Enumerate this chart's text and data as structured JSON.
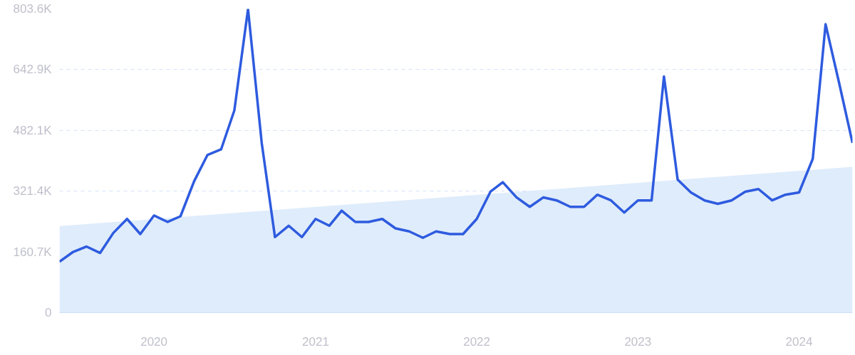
{
  "chart_data": {
    "type": "line",
    "x": [
      "2019-06",
      "2019-07",
      "2019-08",
      "2019-09",
      "2019-10",
      "2019-11",
      "2019-12",
      "2020-01",
      "2020-02",
      "2020-03",
      "2020-04",
      "2020-05",
      "2020-06",
      "2020-07",
      "2020-08",
      "2020-09",
      "2020-10",
      "2020-11",
      "2020-12",
      "2021-01",
      "2021-02",
      "2021-03",
      "2021-04",
      "2021-05",
      "2021-06",
      "2021-07",
      "2021-08",
      "2021-09",
      "2021-10",
      "2021-11",
      "2021-12",
      "2022-01",
      "2022-02",
      "2022-03",
      "2022-04",
      "2022-05",
      "2022-06",
      "2022-07",
      "2022-08",
      "2022-09",
      "2022-10",
      "2022-11",
      "2022-12",
      "2023-01",
      "2023-02",
      "2023-03",
      "2023-04",
      "2023-05",
      "2023-06",
      "2023-07",
      "2023-08",
      "2023-09",
      "2023-10",
      "2023-11",
      "2023-12",
      "2024-01",
      "2024-02",
      "2024-03",
      "2024-04",
      "2024-05"
    ],
    "series": [
      {
        "type": "area",
        "color": "#dfecfb",
        "x": [
          "2019-06",
          "2024-05"
        ],
        "values": [
          229,
          386
        ]
      },
      {
        "color": "#2e5bdf",
        "values": [
          135,
          160,
          175,
          158,
          211,
          248,
          208,
          257,
          240,
          255,
          348,
          417,
          432,
          535,
          803,
          449,
          200,
          230,
          200,
          248,
          230,
          270,
          240,
          240,
          248,
          223,
          215,
          198,
          215,
          208,
          208,
          248,
          320,
          345,
          305,
          280,
          305,
          297,
          280,
          280,
          312,
          297,
          265,
          297,
          297,
          625,
          352,
          318,
          297,
          288,
          297,
          320,
          327,
          297,
          312,
          318,
          407,
          763,
          606,
          449
        ]
      }
    ],
    "xlim": [
      "2019-06",
      "2024-05"
    ],
    "xticks": [
      "2020",
      "2021",
      "2022",
      "2023",
      "2024"
    ],
    "ylim": [
      0,
      803.6
    ],
    "yticks": [
      0,
      {
        "value": 160.7,
        "label": "160.7K"
      },
      {
        "value": 321.4,
        "label": "321.4K"
      },
      {
        "value": 482.1,
        "label": "482.1K"
      },
      {
        "value": 642.9,
        "label": "642.9K"
      },
      {
        "value": 803.6,
        "label": "803.6K"
      }
    ],
    "grid": "y",
    "line_style": "solid",
    "marker": "none"
  }
}
